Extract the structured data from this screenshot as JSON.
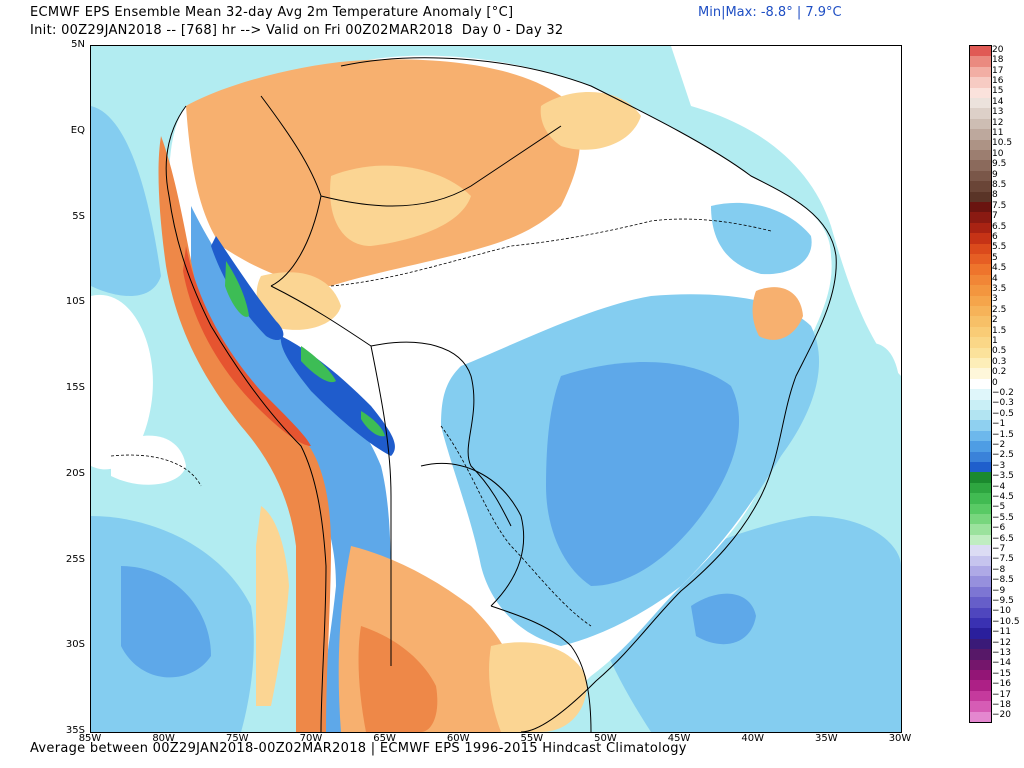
{
  "header": {
    "line1": "ECMWF EPS Ensemble Mean 32-day Avg 2m Temperature Anomaly [°C]",
    "line2": "Init: 00Z29JAN2018 -- [768] hr --> Valid on Fri 00Z02MAR2018  Day 0 - Day 32",
    "minmax": "Min|Max: -8.8° | 7.9°C"
  },
  "footer": "Average between 00Z29JAN2018-00Z02MAR2018 | ECMWF EPS 1996-2015 Hindcast Climatology",
  "map": {
    "lat_labels": [
      "5N",
      "EQ",
      "5S",
      "10S",
      "15S",
      "20S",
      "25S",
      "30S",
      "35S"
    ],
    "lon_labels": [
      "85W",
      "80W",
      "75W",
      "70W",
      "65W",
      "60W",
      "55W",
      "50W",
      "45W",
      "40W",
      "35W",
      "30W"
    ],
    "extent": {
      "lon": [
        -85,
        -30
      ],
      "lat": [
        -35,
        5
      ]
    },
    "colors": {
      "warm_light": "#fbd593",
      "warm": "#f7b06f",
      "warm_strong": "#ee8848",
      "hot": "#e65430",
      "cool_light": "#b2ecf1",
      "cool": "#84cdf0",
      "cool_mid": "#5ea8e9",
      "cool_strong": "#3f7fd6",
      "cold": "#1f5ccc",
      "green": "#3dbd55",
      "neutral": "#ffffff",
      "border": "#000000"
    }
  },
  "colorbar": {
    "levels": [
      "20",
      "18",
      "17",
      "16",
      "15",
      "14",
      "13",
      "12",
      "11",
      "10.5",
      "10",
      "9.5",
      "9",
      "8.5",
      "8",
      "7.5",
      "7",
      "6.5",
      "6",
      "5.5",
      "5",
      "4.5",
      "4",
      "3.5",
      "3",
      "2.5",
      "2",
      "1.5",
      "1",
      "0.5",
      "0.3",
      "0.2",
      "0",
      "-0.2",
      "-0.3",
      "-0.5",
      "-1",
      "-1.5",
      "-2",
      "-2.5",
      "-3",
      "-3.5",
      "-4",
      "-4.5",
      "-5",
      "-5.5",
      "-6",
      "-6.5",
      "-7",
      "-7.5",
      "-8",
      "-8.5",
      "-9",
      "-9.5",
      "-10",
      "-10.5",
      "-11",
      "-12",
      "-13",
      "-14",
      "-15",
      "-16",
      "-17",
      "-18",
      "-20"
    ],
    "colors": [
      "#e05a55",
      "#ea8a80",
      "#f2aea4",
      "#f7cbc3",
      "#fbe2dc",
      "#ece2dc",
      "#ddd0c8",
      "#cdbdb3",
      "#bda89d",
      "#ad9385",
      "#9c7e70",
      "#8b6a5c",
      "#7a5749",
      "#6a4537",
      "#5a3427",
      "#6a1410",
      "#8a1a12",
      "#a92313",
      "#c63316",
      "#db4a1c",
      "#e65e24",
      "#ee742c",
      "#f18636",
      "#f3963f",
      "#f5a54b",
      "#f6b359",
      "#f7c067",
      "#f9cc76",
      "#fad787",
      "#fbe29b",
      "#fdeeb8",
      "#fef7da",
      "#ffffff",
      "#dff6fa",
      "#c9eff6",
      "#b2e4f2",
      "#8fd0f0",
      "#6db8ec",
      "#4e9de4",
      "#3a82d9",
      "#1f5fcc",
      "#1b8a2e",
      "#2ea640",
      "#41bb52",
      "#59ca65",
      "#78d67e",
      "#9be29d",
      "#c0edc1",
      "#dcdcf4",
      "#c6c4ee",
      "#aea9e6",
      "#9690dd",
      "#7d76d3",
      "#665ec9",
      "#4f46be",
      "#3a31b2",
      "#2a1f9c",
      "#3a1a78",
      "#571868",
      "#75166c",
      "#931576",
      "#ad2086",
      "#c53a9d",
      "#d65cb5",
      "#e487cf"
    ]
  }
}
